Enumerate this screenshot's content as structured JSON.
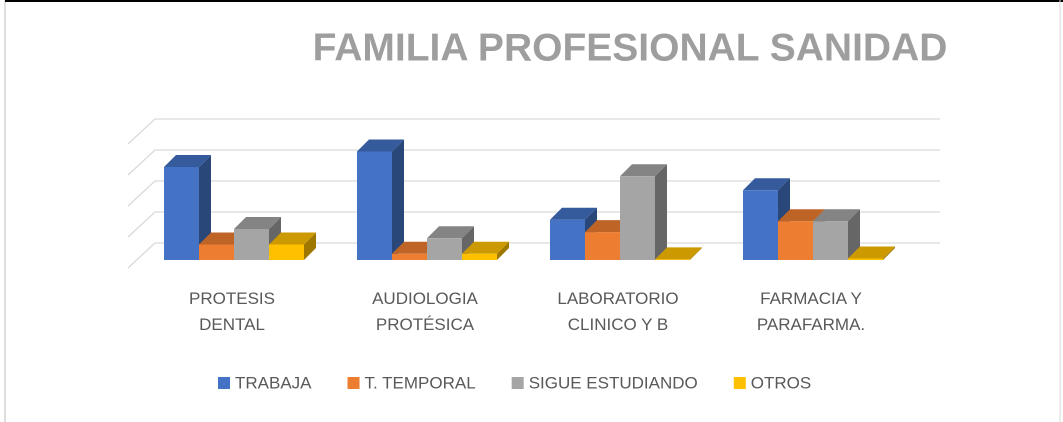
{
  "chart_data": {
    "type": "bar3d",
    "title": "FAMILIA PROFESIONAL SANIDAD",
    "categories": [
      "PROTESIS DENTAL",
      "AUDIOLOGIA PROTÉSICA",
      "LABORATORIO CLINICO Y B",
      "FARMACIA Y PARAFARMA."
    ],
    "series": [
      {
        "name": "TRABAJA",
        "color": "#4472c4",
        "values": [
          3.0,
          3.5,
          1.3,
          2.25
        ]
      },
      {
        "name": "T. TEMPORAL",
        "color": "#ed7d31",
        "values": [
          0.5,
          0.2,
          0.9,
          1.25
        ]
      },
      {
        "name": "SIGUE ESTUDIANDO",
        "color": "#a5a5a5",
        "values": [
          1.0,
          0.7,
          2.7,
          1.25
        ]
      },
      {
        "name": "OTROS",
        "color": "#ffc000",
        "values": [
          0.5,
          0.2,
          0.02,
          0.05
        ]
      }
    ],
    "ylim": [
      0,
      4
    ],
    "yticks": [
      0,
      1,
      2,
      3,
      4
    ],
    "grid": true,
    "legend": "bottom"
  }
}
